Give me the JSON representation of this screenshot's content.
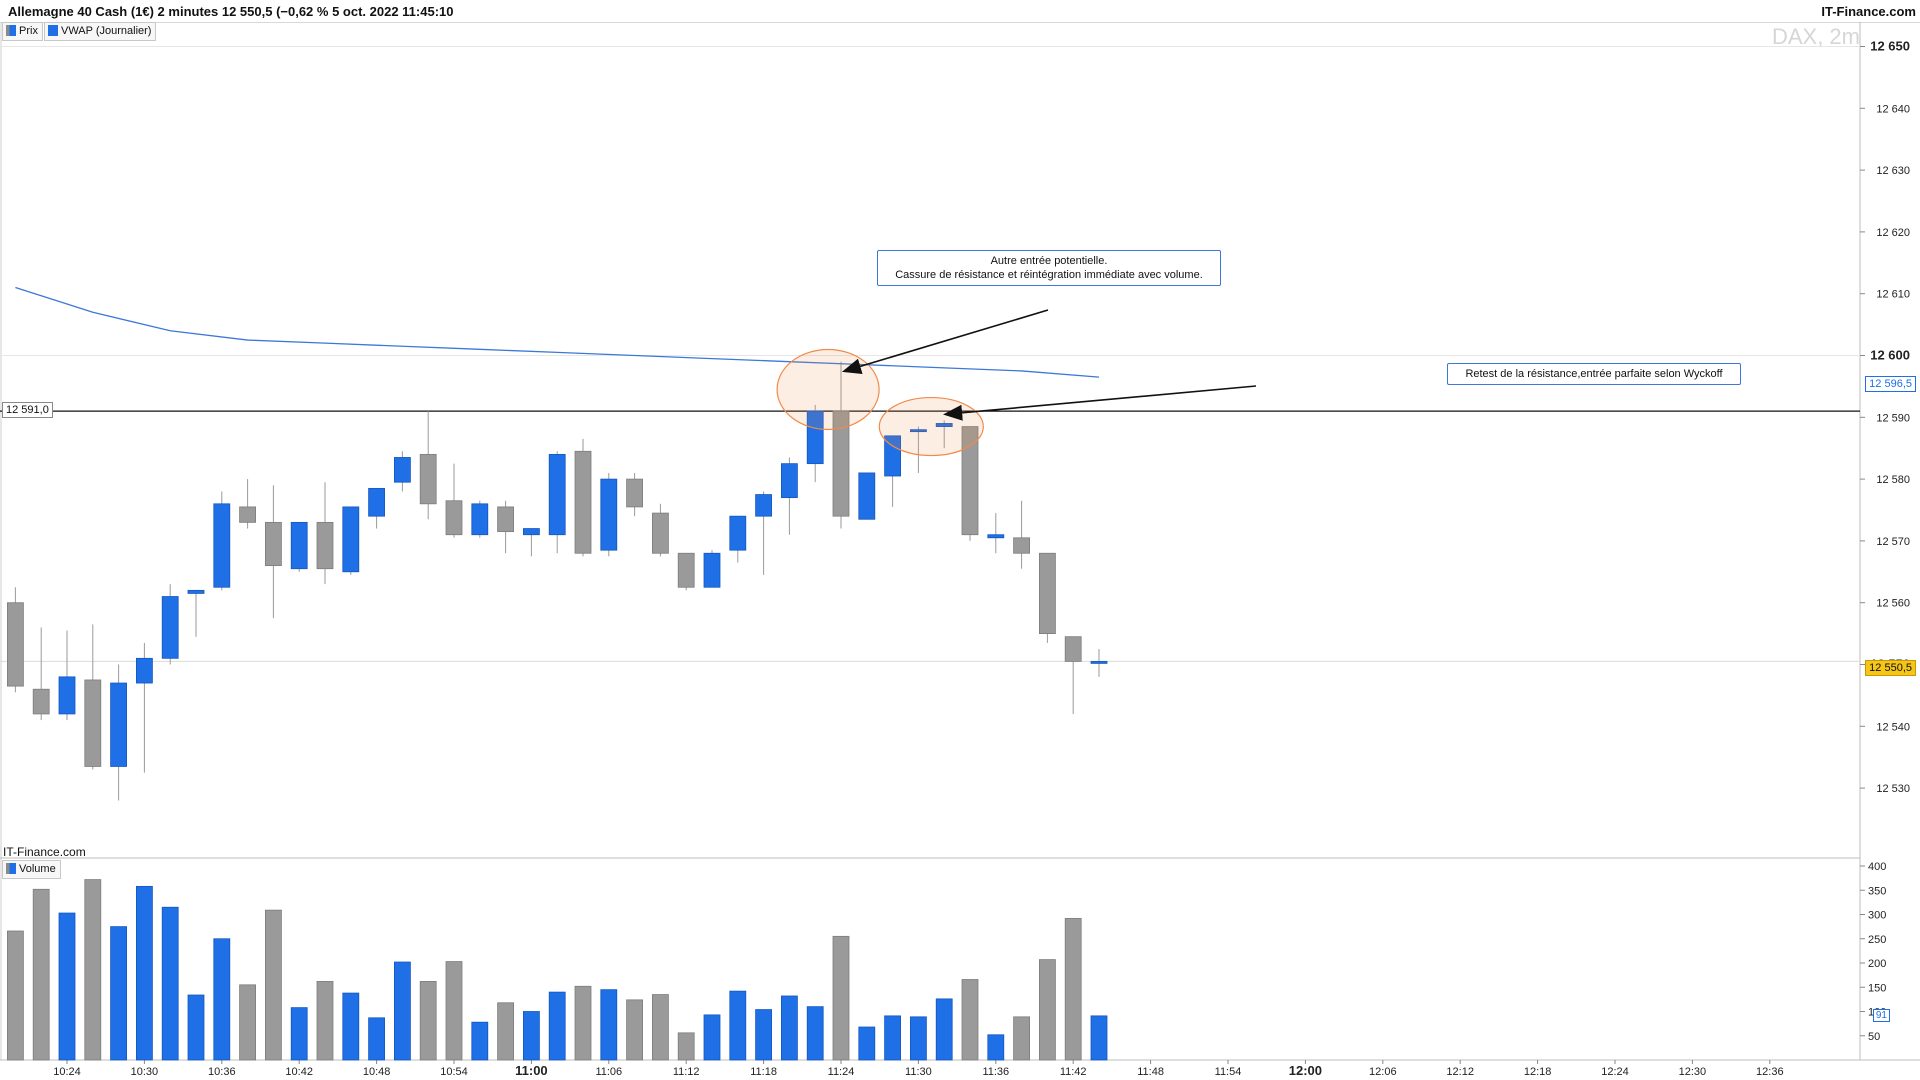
{
  "header": {
    "title": "Allemagne 40 Cash (1€) 2 minutes 12 550,5 (−0,62 % 5 oct. 2022 11:45:10",
    "brand": "IT-Finance.com"
  },
  "legend": {
    "price": "Prix",
    "vwap": "VWAP (Journalier)",
    "volume": "Volume"
  },
  "watermark": "DAX, 2m",
  "footer_brand": "IT-Finance.com",
  "tags": {
    "level": "12 591,0",
    "vwap": "12 596,5",
    "last": "12 550,5",
    "volume": "91"
  },
  "annotations": {
    "callout1_line1": "Autre entrée potentielle.",
    "callout1_line2": "Cassure de résistance et réintégration immédiate avec volume.",
    "callout2": "Retest de la résistance,entrée parfaite selon Wyckoff"
  },
  "colors": {
    "up": "#1f6fe6",
    "down": "#9a9a9a",
    "vwap": "#3c78d8",
    "ellipse": "#f08a4b",
    "last": "#f5c518"
  },
  "chart_data": [
    {
      "type": "candlestick",
      "title": "",
      "xlabel": "",
      "ylabel": "",
      "ylim": [
        12520,
        12655
      ],
      "yticks": [
        "12 530",
        "12 540",
        "12 550",
        "12 560",
        "12 570",
        "12 580",
        "12 590",
        "12 600",
        "12 610",
        "12 620",
        "12 630",
        "12 640",
        "12 650"
      ],
      "xticks": [
        "10:24",
        "10:30",
        "10:36",
        "10:42",
        "10:48",
        "10:54",
        "11:00",
        "11:06",
        "11:12",
        "11:18",
        "11:24",
        "11:30",
        "11:36",
        "11:42",
        "11:48",
        "11:54",
        "12:00",
        "12:06",
        "12:12",
        "12:18",
        "12:24",
        "12:30",
        "12:36"
      ],
      "bold_xticks": [
        "11:00",
        "12:00"
      ],
      "grid": false,
      "resistance": 12591.0,
      "last_price": 12550.5,
      "times": [
        "10:20",
        "10:22",
        "10:24",
        "10:26",
        "10:28",
        "10:30",
        "10:32",
        "10:34",
        "10:36",
        "10:38",
        "10:40",
        "10:42",
        "10:44",
        "10:46",
        "10:48",
        "10:50",
        "10:52",
        "10:54",
        "10:56",
        "10:58",
        "11:00",
        "11:02",
        "11:04",
        "11:06",
        "11:08",
        "11:10",
        "11:12",
        "11:14",
        "11:16",
        "11:18",
        "11:20",
        "11:22",
        "11:24",
        "11:26",
        "11:28",
        "11:30",
        "11:32",
        "11:34",
        "11:36",
        "11:38",
        "11:40",
        "11:42",
        "11:44"
      ],
      "candles": [
        {
          "o": 12560.0,
          "h": 12562.5,
          "l": 12545.5,
          "c": 12546.5
        },
        {
          "o": 12546.0,
          "h": 12556.0,
          "l": 12541.0,
          "c": 12542.0
        },
        {
          "o": 12542.0,
          "h": 12555.5,
          "l": 12541.0,
          "c": 12548.0
        },
        {
          "o": 12547.5,
          "h": 12556.5,
          "l": 12533.0,
          "c": 12533.5
        },
        {
          "o": 12533.5,
          "h": 12550.0,
          "l": 12528.0,
          "c": 12547.0
        },
        {
          "o": 12547.0,
          "h": 12553.5,
          "l": 12532.5,
          "c": 12551.0
        },
        {
          "o": 12551.0,
          "h": 12563.0,
          "l": 12550.0,
          "c": 12561.0
        },
        {
          "o": 12561.5,
          "h": 12561.5,
          "l": 12554.5,
          "c": 12562.0
        },
        {
          "o": 12562.5,
          "h": 12578.0,
          "l": 12562.0,
          "c": 12576.0
        },
        {
          "o": 12575.5,
          "h": 12580.0,
          "l": 12572.0,
          "c": 12573.0
        },
        {
          "o": 12573.0,
          "h": 12579.0,
          "l": 12557.5,
          "c": 12566.0
        },
        {
          "o": 12565.5,
          "h": 12573.0,
          "l": 12565.0,
          "c": 12573.0
        },
        {
          "o": 12573.0,
          "h": 12579.5,
          "l": 12563.0,
          "c": 12565.5
        },
        {
          "o": 12565.0,
          "h": 12575.5,
          "l": 12564.5,
          "c": 12575.5
        },
        {
          "o": 12574.0,
          "h": 12578.5,
          "l": 12572.0,
          "c": 12578.5
        },
        {
          "o": 12579.5,
          "h": 12584.5,
          "l": 12578.0,
          "c": 12583.5
        },
        {
          "o": 12584.0,
          "h": 12591.0,
          "l": 12573.5,
          "c": 12576.0
        },
        {
          "o": 12576.5,
          "h": 12582.5,
          "l": 12570.5,
          "c": 12571.0
        },
        {
          "o": 12571.0,
          "h": 12576.5,
          "l": 12570.5,
          "c": 12576.0
        },
        {
          "o": 12575.5,
          "h": 12576.5,
          "l": 12568.0,
          "c": 12571.5
        },
        {
          "o": 12571.0,
          "h": 12571.5,
          "l": 12567.5,
          "c": 12572.0
        },
        {
          "o": 12571.0,
          "h": 12584.5,
          "l": 12568.0,
          "c": 12584.0
        },
        {
          "o": 12584.5,
          "h": 12586.5,
          "l": 12567.5,
          "c": 12568.0
        },
        {
          "o": 12568.5,
          "h": 12581.0,
          "l": 12567.5,
          "c": 12580.0
        },
        {
          "o": 12580.0,
          "h": 12581.0,
          "l": 12574.0,
          "c": 12575.5
        },
        {
          "o": 12574.5,
          "h": 12576.0,
          "l": 12567.5,
          "c": 12568.0
        },
        {
          "o": 12568.0,
          "h": 12568.0,
          "l": 12562.0,
          "c": 12562.5
        },
        {
          "o": 12562.5,
          "h": 12568.5,
          "l": 12562.5,
          "c": 12568.0
        },
        {
          "o": 12568.5,
          "h": 12574.0,
          "l": 12566.5,
          "c": 12574.0
        },
        {
          "o": 12574.0,
          "h": 12578.0,
          "l": 12564.5,
          "c": 12577.5
        },
        {
          "o": 12577.0,
          "h": 12583.5,
          "l": 12571.0,
          "c": 12582.5
        },
        {
          "o": 12582.5,
          "h": 12592.0,
          "l": 12579.5,
          "c": 12591.0
        },
        {
          "o": 12591.0,
          "h": 12599.0,
          "l": 12572.0,
          "c": 12574.0
        },
        {
          "o": 12573.5,
          "h": 12581.0,
          "l": 12573.5,
          "c": 12581.0
        },
        {
          "o": 12580.5,
          "h": 12587.0,
          "l": 12575.5,
          "c": 12587.0
        },
        {
          "o": 12588.0,
          "h": 12588.5,
          "l": 12581.0,
          "c": 12588.0
        },
        {
          "o": 12588.5,
          "h": 12589.5,
          "l": 12585.0,
          "c": 12589.0
        },
        {
          "o": 12588.5,
          "h": 12588.5,
          "l": 12570.0,
          "c": 12571.0
        },
        {
          "o": 12570.5,
          "h": 12574.5,
          "l": 12568.0,
          "c": 12571.0
        },
        {
          "o": 12570.5,
          "h": 12576.5,
          "l": 12565.5,
          "c": 12568.0
        },
        {
          "o": 12568.0,
          "h": 12568.0,
          "l": 12553.5,
          "c": 12555.0
        },
        {
          "o": 12554.5,
          "h": 12554.5,
          "l": 12542.0,
          "c": 12550.5
        },
        {
          "o": 12550.5,
          "h": 12552.5,
          "l": 12548.0,
          "c": 12550.5
        }
      ],
      "vwap": {
        "name": "VWAP (Journalier)",
        "points": [
          {
            "t": "10:20",
            "v": 12611.0
          },
          {
            "t": "10:26",
            "v": 12607.0
          },
          {
            "t": "10:32",
            "v": 12604.0
          },
          {
            "t": "10:38",
            "v": 12602.5
          },
          {
            "t": "10:44",
            "v": 12602.0
          },
          {
            "t": "10:50",
            "v": 12601.5
          },
          {
            "t": "10:56",
            "v": 12601.0
          },
          {
            "t": "11:02",
            "v": 12600.5
          },
          {
            "t": "11:08",
            "v": 12600.0
          },
          {
            "t": "11:14",
            "v": 12599.5
          },
          {
            "t": "11:20",
            "v": 12599.0
          },
          {
            "t": "11:26",
            "v": 12598.5
          },
          {
            "t": "11:32",
            "v": 12598.0
          },
          {
            "t": "11:38",
            "v": 12597.5
          },
          {
            "t": "11:44",
            "v": 12596.5
          }
        ]
      }
    },
    {
      "type": "bar",
      "title": "Volume",
      "ylim": [
        0,
        420
      ],
      "yticks": [
        "50",
        "100",
        "150",
        "200",
        "250",
        "300",
        "350",
        "400"
      ],
      "values": [
        266,
        352,
        303,
        372,
        275,
        358,
        315,
        134,
        250,
        155,
        309,
        108,
        162,
        138,
        87,
        202,
        162,
        203,
        78,
        118,
        100,
        140,
        152,
        145,
        124,
        135,
        56,
        93,
        142,
        104,
        132,
        110,
        255,
        68,
        91,
        89,
        126,
        166,
        52,
        89,
        207,
        292,
        91
      ]
    }
  ]
}
